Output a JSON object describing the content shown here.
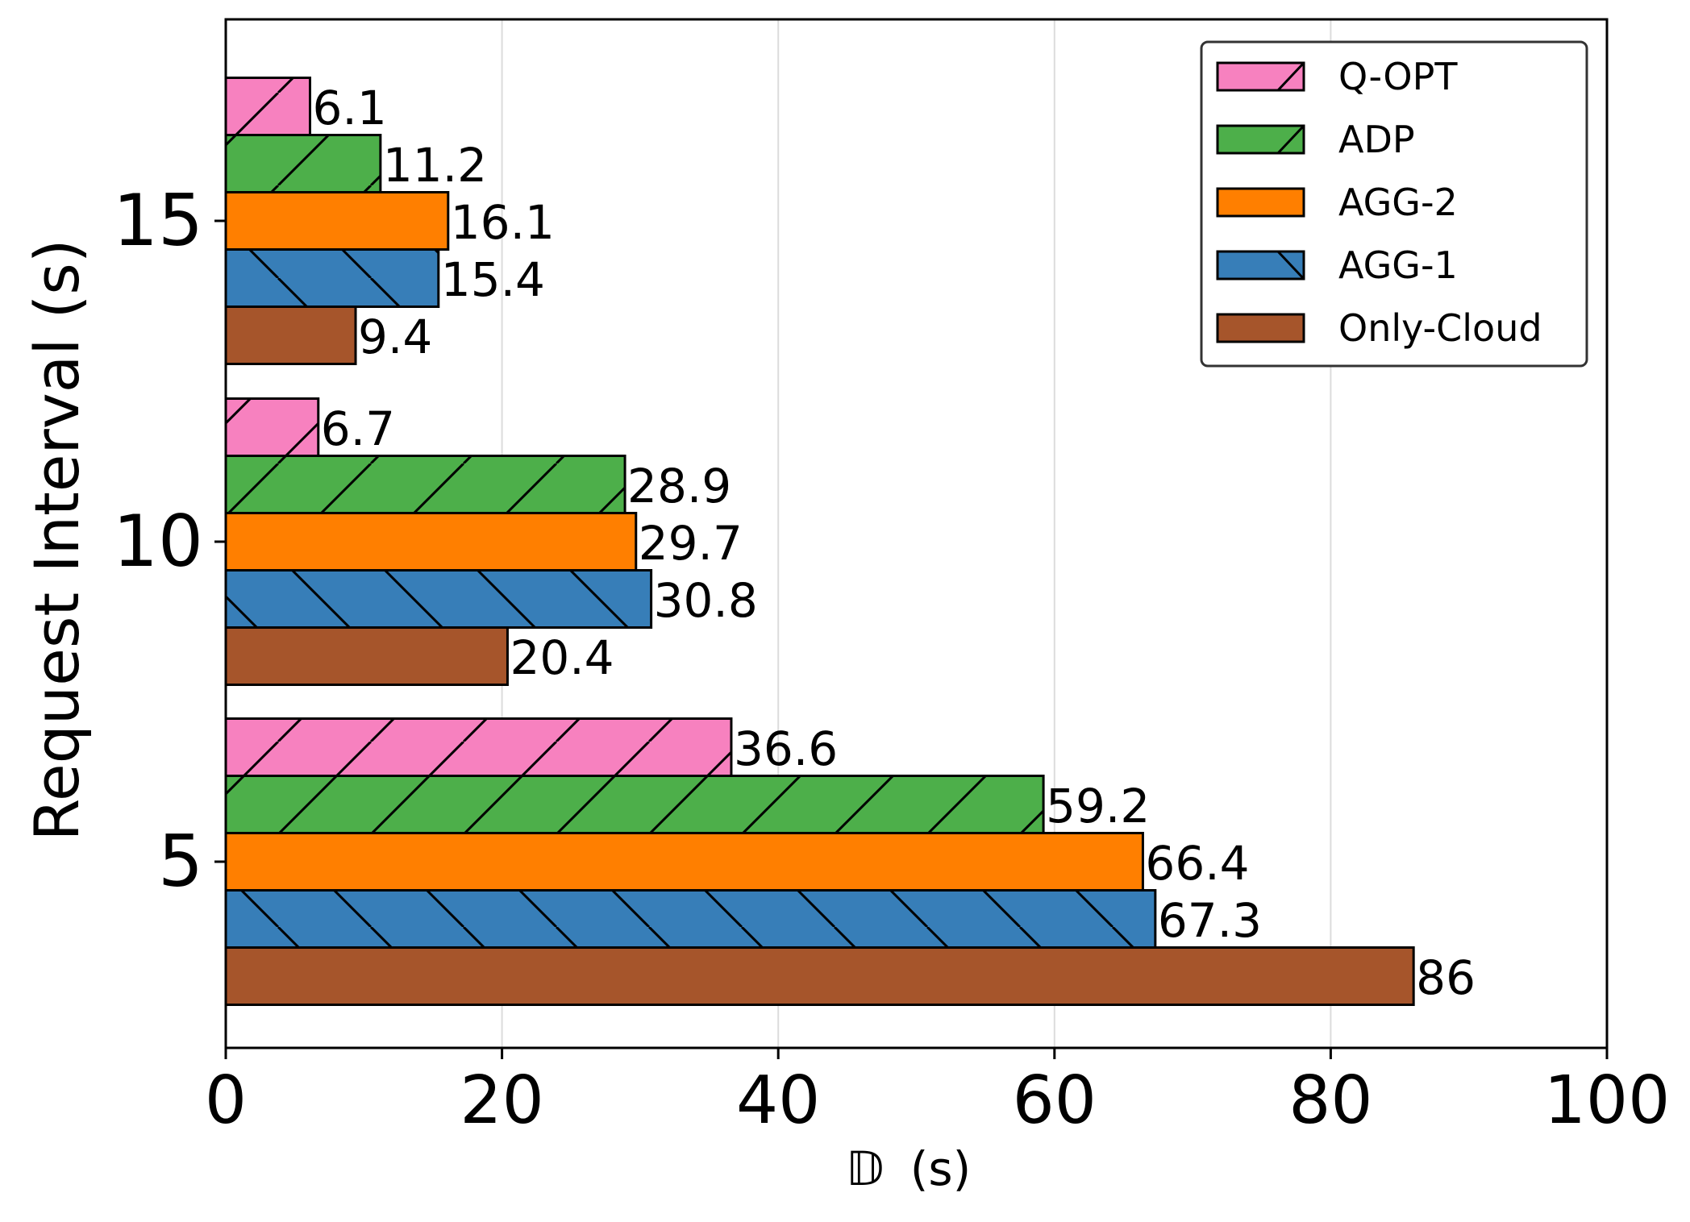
{
  "chart_data": {
    "type": "bar",
    "orientation": "horizontal",
    "title": "",
    "xlabel_symbol": "𝔻",
    "xlabel_unit": "(s)",
    "ylabel": "Request Interval (s)",
    "xlim": [
      0,
      100
    ],
    "xticks": [
      0,
      20,
      40,
      60,
      80,
      100
    ],
    "grid": "x",
    "legend_position": "top-right",
    "categories": [
      "5",
      "10",
      "15"
    ],
    "series": [
      {
        "name": "Only-Cloud",
        "color": "#a6552b",
        "hatch": "none",
        "values": [
          86,
          20.4,
          9.4
        ],
        "labels": [
          "86",
          "20.4",
          "9.4"
        ]
      },
      {
        "name": "AGG-1",
        "color": "#377eb8",
        "hatch": "backslash",
        "values": [
          67.3,
          30.8,
          15.4
        ],
        "labels": [
          "67.3",
          "30.8",
          "15.4"
        ]
      },
      {
        "name": "AGG-2",
        "color": "#ff7f00",
        "hatch": "none",
        "values": [
          66.4,
          29.7,
          16.1
        ],
        "labels": [
          "66.4",
          "29.7",
          "16.1"
        ]
      },
      {
        "name": "ADP",
        "color": "#4daf4a",
        "hatch": "slash",
        "values": [
          59.2,
          28.9,
          11.2
        ],
        "labels": [
          "59.2",
          "28.9",
          "11.2"
        ]
      },
      {
        "name": "Q-OPT",
        "color": "#f781bf",
        "hatch": "slash",
        "values": [
          36.6,
          6.7,
          6.1
        ],
        "labels": [
          "36.6",
          "6.7",
          "6.1"
        ]
      }
    ],
    "legend_order": [
      "Q-OPT",
      "ADP",
      "AGG-2",
      "AGG-1",
      "Only-Cloud"
    ]
  }
}
